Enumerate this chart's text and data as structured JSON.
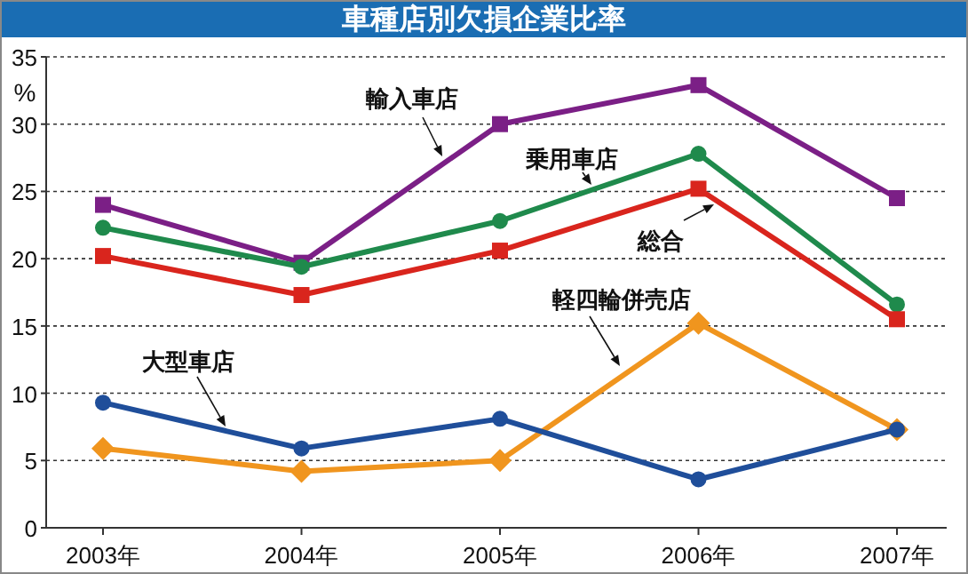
{
  "chart_data": {
    "type": "line",
    "title": "車種店別欠損企業比率",
    "ylabel": "%",
    "categories": [
      "2003年",
      "2004年",
      "2005年",
      "2006年",
      "2007年"
    ],
    "series": [
      {
        "name": "輸入車店",
        "color": "#7b1f86",
        "marker": "square",
        "values": [
          24.0,
          19.7,
          30.0,
          32.9,
          24.5
        ]
      },
      {
        "name": "乗用車店",
        "color": "#1f8a4c",
        "marker": "circle",
        "values": [
          22.3,
          19.4,
          22.8,
          27.8,
          16.6
        ]
      },
      {
        "name": "総合",
        "color": "#d9251d",
        "marker": "square",
        "values": [
          20.2,
          17.3,
          20.6,
          25.2,
          15.5
        ]
      },
      {
        "name": "軽四輪併売店",
        "color": "#f0951e",
        "marker": "diamond",
        "values": [
          5.9,
          4.2,
          5.0,
          15.2,
          7.3
        ]
      },
      {
        "name": "大型車店",
        "color": "#1f4e9a",
        "marker": "circle",
        "values": [
          9.3,
          5.9,
          8.1,
          3.6,
          7.3
        ]
      }
    ],
    "ylim": [
      0,
      35
    ],
    "yticks": [
      0,
      5,
      10,
      15,
      20,
      25,
      30,
      35
    ],
    "grid": "y",
    "legend": false,
    "line_style": "solid"
  }
}
